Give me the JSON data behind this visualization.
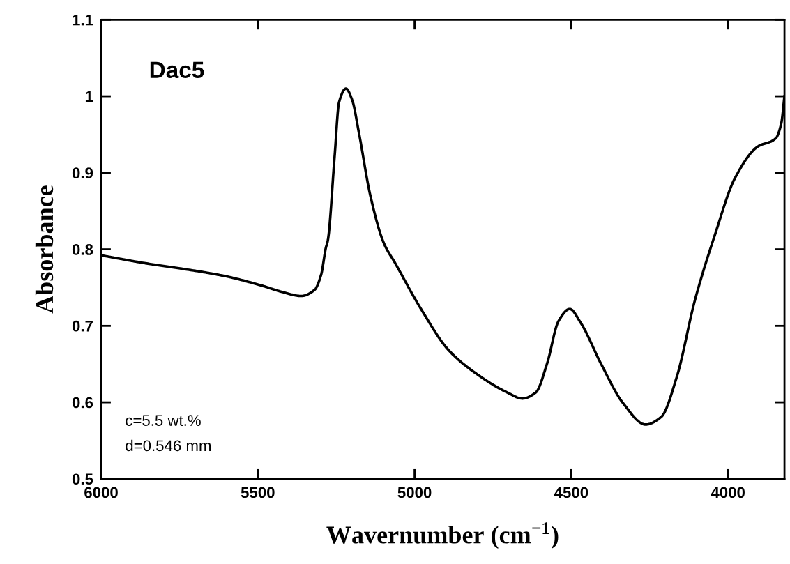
{
  "chart_data": {
    "type": "line",
    "xlabel": "Wavernumber (cm$^{−1}$)",
    "ylabel": "Absorbance",
    "annotations": [
      "Dac5",
      "c=5.5 wt.%",
      "d=0.546 mm"
    ],
    "xlim": [
      6000,
      3820
    ],
    "xticks": [
      6000,
      5500,
      5000,
      4500,
      4000
    ],
    "ylim": [
      0.5,
      1.1
    ],
    "yticks": [
      0.5,
      0.6,
      0.7,
      0.8,
      0.9,
      1,
      1.1
    ],
    "grid": false,
    "marker": "none",
    "line_style": "solid",
    "series": [
      {
        "color": "#000000",
        "x": [
          5998,
          5862,
          5748,
          5605,
          5491,
          5420,
          5362,
          5319,
          5298,
          5283,
          5277,
          5255,
          5241,
          5219,
          5199,
          5177,
          5141,
          5098,
          5062,
          4978,
          4891,
          4791,
          4705,
          4656,
          4613,
          4577,
          4541,
          4505,
          4470,
          4406,
          4335,
          4263,
          4213,
          4163,
          4106,
          4041,
          3978,
          3906,
          3848,
          3830,
          3820
        ],
        "values": [
          0.792,
          0.782,
          0.775,
          0.765,
          0.753,
          0.744,
          0.739,
          0.747,
          0.767,
          0.802,
          0.811,
          0.922,
          0.992,
          1.01,
          0.995,
          0.951,
          0.87,
          0.808,
          0.782,
          0.721,
          0.668,
          0.634,
          0.613,
          0.605,
          0.613,
          0.651,
          0.706,
          0.722,
          0.704,
          0.651,
          0.599,
          0.571,
          0.581,
          0.634,
          0.733,
          0.82,
          0.893,
          0.934,
          0.945,
          0.965,
          1.0
        ]
      }
    ]
  }
}
